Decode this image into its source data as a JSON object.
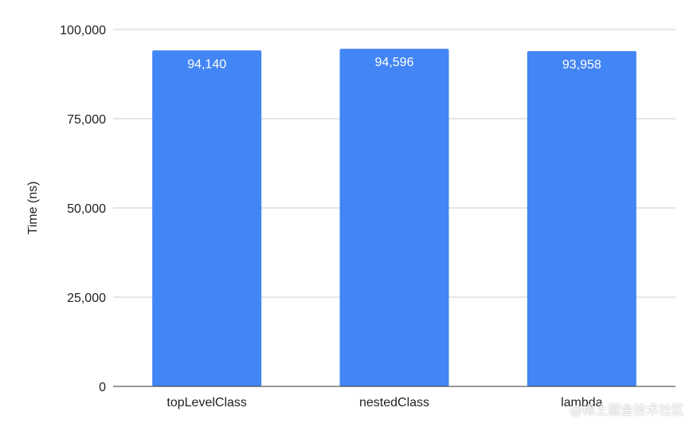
{
  "chart_data": {
    "type": "bar",
    "categories": [
      "topLevelClass",
      "nestedClass",
      "lambda"
    ],
    "values": [
      94140,
      94596,
      93958
    ],
    "data_labels": [
      "94,140",
      "94,596",
      "93,958"
    ],
    "title": "",
    "xlabel": "",
    "ylabel": "Time (ns)",
    "ylim": [
      0,
      100000
    ],
    "yticks": [
      0,
      25000,
      50000,
      75000,
      100000
    ],
    "ytick_labels": [
      "0",
      "25,000",
      "50,000",
      "75,000",
      "100,000"
    ],
    "grid": true,
    "legend": "none",
    "bar_color": "#4285f4",
    "grid_color": "#cccccc",
    "axis_color": "#333333"
  },
  "watermark": "@稀土掘金技术社区"
}
